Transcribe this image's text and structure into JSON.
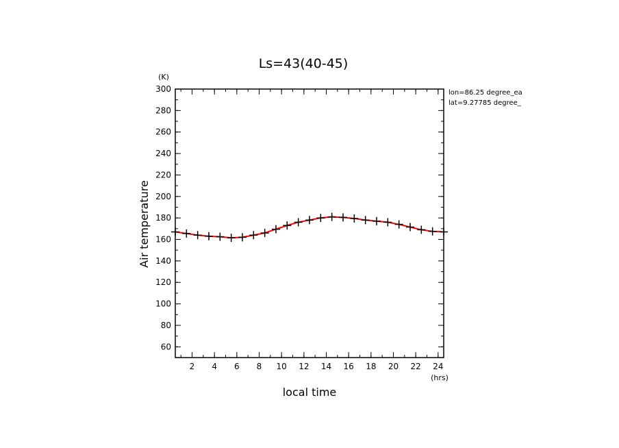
{
  "chart_data": {
    "type": "line",
    "title": "Ls=43(40-45)",
    "xlabel": "local time",
    "ylabel": "Air temperature",
    "x_unit": "(hrs)",
    "y_unit": "(K)",
    "xlim": [
      0.5,
      24.5
    ],
    "ylim": [
      50,
      300
    ],
    "x_ticks": [
      2,
      4,
      6,
      8,
      10,
      12,
      14,
      16,
      18,
      20,
      22,
      24
    ],
    "y_ticks": [
      60,
      80,
      100,
      120,
      140,
      160,
      180,
      200,
      220,
      240,
      260,
      280,
      300
    ],
    "grid": false,
    "annotations": [
      "lon=86.25 degree_ea",
      "lat=9.27785 degree_"
    ],
    "series": [
      {
        "color": "#ff0000",
        "marker": "plus",
        "marker_color": "#000000",
        "x": [
          0.5,
          1.5,
          2.5,
          3.5,
          4.5,
          5.5,
          6.5,
          7.5,
          8.5,
          9.5,
          10.5,
          11.5,
          12.5,
          13.5,
          14.5,
          15.5,
          16.5,
          17.5,
          18.5,
          19.5,
          20.5,
          21.5,
          22.5,
          23.5,
          24.5
        ],
        "values": [
          167,
          165.5,
          164,
          163,
          162.5,
          161.5,
          162,
          164,
          166,
          169.5,
          173,
          176,
          178,
          180,
          181,
          180.5,
          179.5,
          178,
          177,
          176,
          174,
          171.5,
          169,
          167.5,
          167
        ]
      }
    ]
  }
}
